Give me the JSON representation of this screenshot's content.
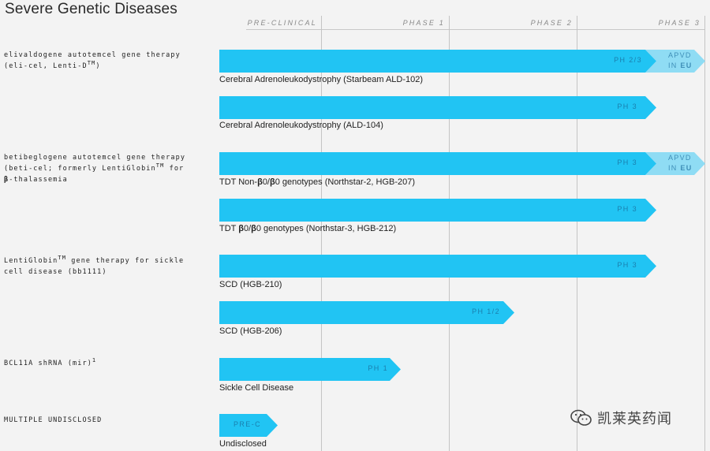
{
  "title": "Severe Genetic Diseases",
  "phases": [
    "PRE-CLINICAL",
    "PHASE 1",
    "PHASE 2",
    "PHASE 3"
  ],
  "colors": {
    "bar": "#21c4f3",
    "approved": "#8fdcf4",
    "label": "#1a7fae"
  },
  "programs": [
    {
      "name_lines": [
        "elivaldogene autotemcel gene therapy",
        "(eli-cel, Lenti-D"
      ],
      "tm": "TM",
      "tail": ")"
    },
    {
      "name_lines": [
        "betibeglogene autotemcel gene therapy",
        "(beti-cel; formerly LentiGlobin"
      ],
      "tm": "TM",
      "tail": " for",
      "line3_b": "β",
      "line3": "-thalassemia"
    },
    {
      "name_lines": [
        "LentiGlobin",
        " gene therapy for sickle",
        "cell disease (bb1111)"
      ],
      "tm": "TM"
    },
    {
      "name_lines": [
        "BCL11A shRNA (mir)"
      ],
      "sup": "1"
    },
    {
      "name_lines": [
        "MULTIPLE UNDISCLOSED"
      ]
    }
  ],
  "bars": [
    {
      "label": "PH 2/3",
      "indication": "Cerebral Adrenoleukodystrophy (Starbeam ALD-102)",
      "approved": {
        "line1": "APVD",
        "line2_prefix": "IN ",
        "line2_bold": "EU"
      }
    },
    {
      "label": "PH 3",
      "indication": "Cerebral Adrenoleukodystrophy (ALD-104)"
    },
    {
      "label": "PH 3",
      "indication_parts": [
        "TDT Non-",
        "β",
        "0/",
        "β",
        "0 genotypes (Northstar-2, HGB-207)"
      ],
      "approved": {
        "line1": "APVD",
        "line2_prefix": "IN ",
        "line2_bold": "EU"
      }
    },
    {
      "label": "PH 3",
      "indication_parts": [
        "TDT ",
        "β",
        "0/",
        "β",
        "0 genotypes (Northstar-3, HGB-212)"
      ]
    },
    {
      "label": "PH 3",
      "indication": "SCD (HGB-210)"
    },
    {
      "label": "PH 1/2",
      "indication": "SCD (HGB-206)"
    },
    {
      "label": "PH 1",
      "indication": "Sickle Cell Disease"
    },
    {
      "label": "PRE-C",
      "indication": "Undisclosed"
    }
  ],
  "watermark": "凯莱英药闻"
}
